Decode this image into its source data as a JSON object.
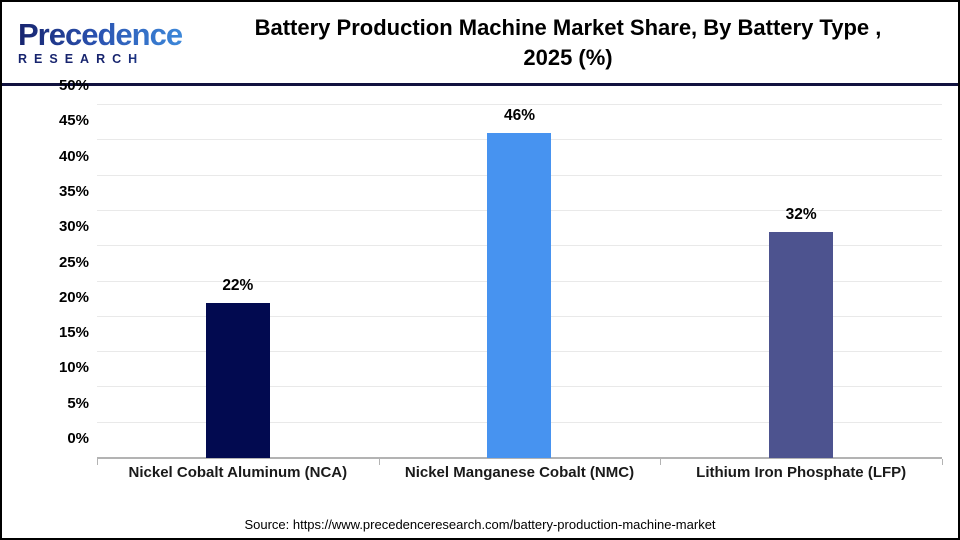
{
  "header": {
    "logo_brand": "Precedence",
    "logo_subtitle": "RESEARCH",
    "title_line1": "Battery Production Machine Market Share, By Battery Type ,",
    "title_line2": "2025 (%)"
  },
  "chart_data": {
    "type": "bar",
    "title": "Battery Production Machine Market Share, By Battery Type , 2025 (%)",
    "categories": [
      "Nickel Cobalt Aluminum (NCA)",
      "Nickel Manganese Cobalt (NMC)",
      "Lithium Iron Phosphate (LFP)"
    ],
    "values": [
      22,
      46,
      32
    ],
    "value_labels": [
      "22%",
      "46%",
      "32%"
    ],
    "bar_colors": [
      "#020a50",
      "#4793f0",
      "#4d538f"
    ],
    "ylim": [
      0,
      50
    ],
    "ytick_step": 5,
    "ytick_labels": [
      "0%",
      "5%",
      "10%",
      "15%",
      "20%",
      "25%",
      "30%",
      "35%",
      "40%",
      "45%",
      "50%"
    ],
    "grid": true,
    "legend": "none",
    "xlabel": "",
    "ylabel": ""
  },
  "footer": {
    "source": "Source: https://www.precedenceresearch.com/battery-production-machine-market"
  }
}
